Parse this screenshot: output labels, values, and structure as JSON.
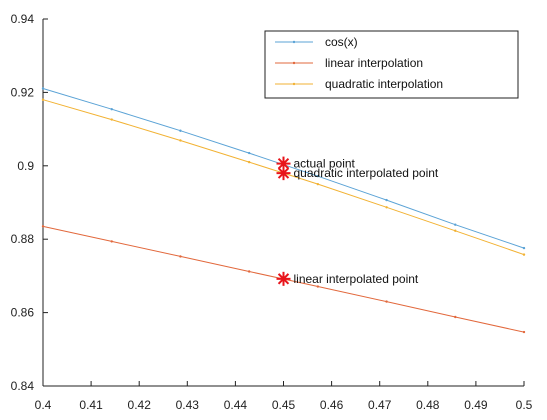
{
  "chart_data": {
    "type": "line",
    "xlim": [
      0.4,
      0.5
    ],
    "ylim": [
      0.84,
      0.94
    ],
    "x_ticks": [
      "0.4",
      "0.41",
      "0.42",
      "0.43",
      "0.44",
      "0.45",
      "0.46",
      "0.47",
      "0.48",
      "0.49",
      "0.5"
    ],
    "y_ticks": [
      "0.84",
      "0.86",
      "0.88",
      "0.9",
      "0.92",
      "0.94"
    ],
    "grid": false,
    "legend_position": "top-right",
    "series": [
      {
        "name": "cos(x)",
        "color": "#5ba3d6",
        "x": [
          0.4,
          0.414286,
          0.428571,
          0.442857,
          0.457143,
          0.471429,
          0.485714,
          0.5
        ],
        "y": [
          0.921061,
          0.915417,
          0.909553,
          0.903471,
          0.897174,
          0.890664,
          0.883943,
          0.877583
        ]
      },
      {
        "name": "linear interpolation",
        "color": "#e2683c",
        "x": [
          0.4,
          0.414286,
          0.428571,
          0.442857,
          0.457143,
          0.471429,
          0.485714,
          0.5
        ],
        "y": [
          0.8835,
          0.8794,
          0.8753,
          0.8712,
          0.8671,
          0.863,
          0.8588,
          0.8547
        ]
      },
      {
        "name": "quadratic interpolation",
        "color": "#f2b233",
        "x": [
          0.4,
          0.414286,
          0.428571,
          0.442857,
          0.457143,
          0.471429,
          0.485714,
          0.5
        ],
        "y": [
          0.918,
          0.9126,
          0.9069,
          0.901,
          0.895,
          0.8887,
          0.8823,
          0.8758
        ]
      }
    ],
    "annotations": [
      {
        "text": "actual point",
        "x": 0.45,
        "y": 0.9006,
        "marker": "asterisk",
        "color": "#e8141b"
      },
      {
        "text": "quadratic interpolated point",
        "x": 0.45,
        "y": 0.898,
        "marker": "asterisk",
        "color": "#e8141b"
      },
      {
        "text": "linear interpolated point",
        "x": 0.45,
        "y": 0.8692,
        "marker": "asterisk",
        "color": "#e8141b"
      }
    ]
  }
}
